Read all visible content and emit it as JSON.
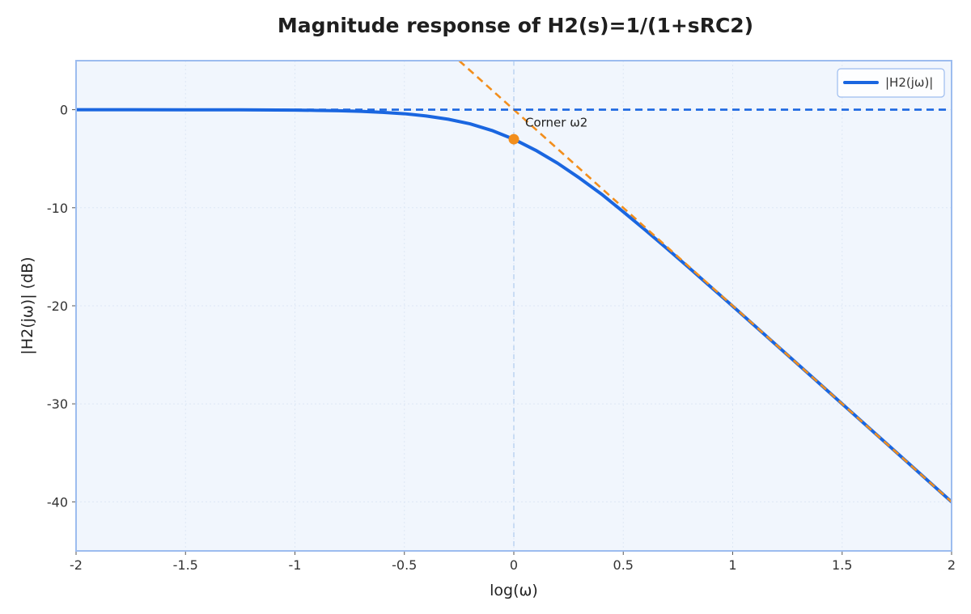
{
  "chart_data": {
    "type": "line",
    "title": "Magnitude response of H2(s)=1/(1+sRC2)",
    "xlabel": "log(ω)",
    "ylabel": "|H2(jω)| (dB)",
    "xlim": [
      -2,
      2
    ],
    "ylim": [
      -45,
      5
    ],
    "x_ticks": [
      -2,
      -1.5,
      -1,
      -0.5,
      0,
      0.5,
      1,
      1.5,
      2
    ],
    "x_tick_labels": [
      "-2",
      "-1.5",
      "-1",
      "-0.5",
      "0",
      "0.5",
      "1",
      "1.5",
      "2"
    ],
    "y_ticks": [
      0,
      -10,
      -20,
      -30,
      -40
    ],
    "y_tick_labels": [
      "0",
      "-10",
      "-20",
      "-30",
      "-40"
    ],
    "grid": true,
    "legend": {
      "position": "top-right",
      "entries": [
        "|H2(jω)|"
      ]
    },
    "series": [
      {
        "name": "|H2(jω)|",
        "style": "solid",
        "color": "#1a66e0",
        "x": [
          -2,
          -1.75,
          -1.5,
          -1.25,
          -1,
          -0.9,
          -0.8,
          -0.7,
          -0.6,
          -0.5,
          -0.4,
          -0.3,
          -0.2,
          -0.1,
          0,
          0.1,
          0.2,
          0.3,
          0.4,
          0.5,
          0.6,
          0.7,
          0.8,
          0.9,
          1,
          1.25,
          1.5,
          1.75,
          2
        ],
        "y": [
          0,
          0,
          -0.01,
          -0.01,
          -0.04,
          -0.07,
          -0.11,
          -0.17,
          -0.27,
          -0.41,
          -0.64,
          -0.97,
          -1.44,
          -2.12,
          -3.01,
          -4.14,
          -5.46,
          -6.97,
          -8.6,
          -10.41,
          -12.26,
          -14.17,
          -16.11,
          -18.08,
          -20.04,
          -25.01,
          -30.0,
          -35.0,
          -40.0
        ]
      },
      {
        "name": "",
        "style": "dashed",
        "color": "#1a66e0",
        "x": [
          -2,
          0
        ],
        "y": [
          0,
          0
        ]
      },
      {
        "name": "",
        "style": "dashed",
        "color": "#f28e1c",
        "x": [
          -0.25,
          2
        ],
        "y": [
          5,
          -40
        ]
      }
    ],
    "vertical_line": {
      "x": 0,
      "style": "dashed",
      "color": "#bcd3f2"
    },
    "annotations": [
      {
        "text": "Corner ω2",
        "x": 0,
        "y": -3.01,
        "marker_color": "#f28e1c"
      }
    ],
    "colors": {
      "plot_background": "#f1f6fd",
      "frame": "#9cbcef",
      "grid": "#dde7f5",
      "primary": "#1a66e0",
      "asymptote": "#f28e1c",
      "marker": "#f28e1c"
    }
  }
}
